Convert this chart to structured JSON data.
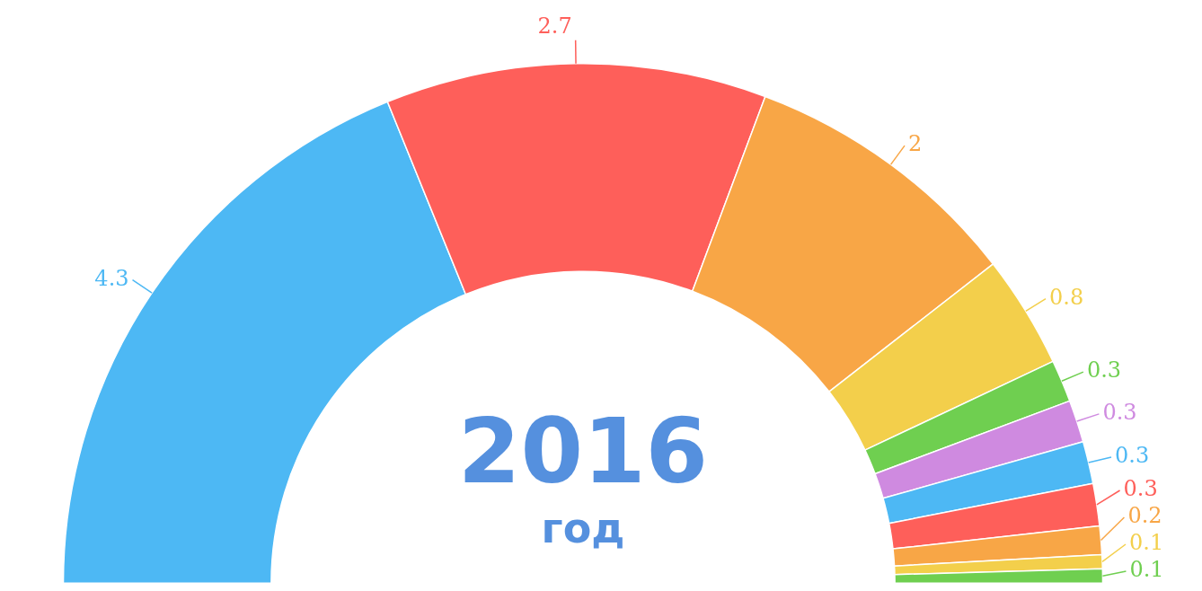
{
  "chart_data": {
    "type": "donut",
    "categories": [
      null,
      null,
      null,
      null,
      null,
      null,
      null,
      null,
      null,
      null,
      null
    ],
    "values": [
      4.3,
      2.7,
      2,
      0.8,
      0.3,
      0.3,
      0.3,
      0.3,
      0.2,
      0.1,
      0.1
    ],
    "colors": [
      "#4db8f4",
      "#fe5f5a",
      "#f8a646",
      "#f3cf4b",
      "#6fcf50",
      "#cf8ae0",
      "#4db8f4",
      "#fe5f5a",
      "#f8a646",
      "#f3cf4b",
      "#6fcf50"
    ],
    "data_labels": true,
    "legend": false,
    "annotations": [
      "2016",
      "год"
    ]
  }
}
